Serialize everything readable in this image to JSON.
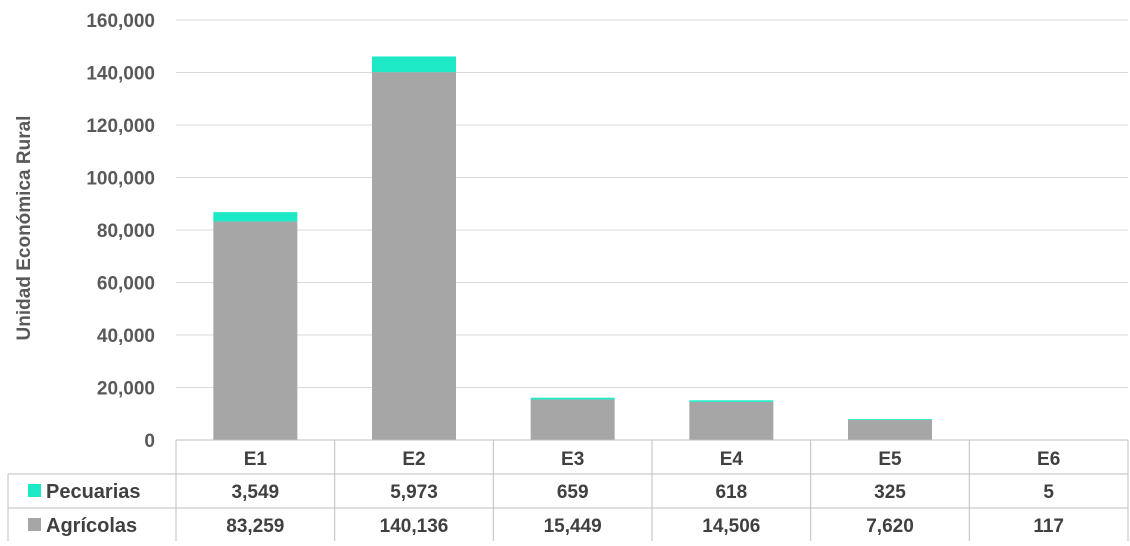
{
  "chart_data": {
    "type": "bar",
    "stacked": true,
    "categories": [
      "E1",
      "E2",
      "E3",
      "E4",
      "E5",
      "E6"
    ],
    "series": [
      {
        "name": "Agrícolas",
        "values": [
          83259,
          140136,
          15449,
          14506,
          7620,
          117
        ],
        "labels": [
          "83,259",
          "140,136",
          "15,449",
          "14,506",
          "7,620",
          "117"
        ],
        "color": "#a6a6a6"
      },
      {
        "name": "Pecuarias",
        "values": [
          3549,
          5973,
          659,
          618,
          325,
          5
        ],
        "labels": [
          "3,549",
          "5,973",
          "659",
          "618",
          "325",
          "5"
        ],
        "color": "#1de9c7"
      }
    ],
    "table_row_order": [
      "Pecuarias",
      "Agrícolas"
    ],
    "ylabel": "Unidad Económica Rural",
    "ylim": [
      0,
      160000
    ],
    "yticks": [
      0,
      20000,
      40000,
      60000,
      80000,
      100000,
      120000,
      140000,
      160000
    ],
    "ytick_labels": [
      "0",
      "20,000",
      "40,000",
      "60,000",
      "80,000",
      "100,000",
      "120,000",
      "140,000",
      "160,000"
    ],
    "grid": true,
    "legend": "data-table"
  }
}
